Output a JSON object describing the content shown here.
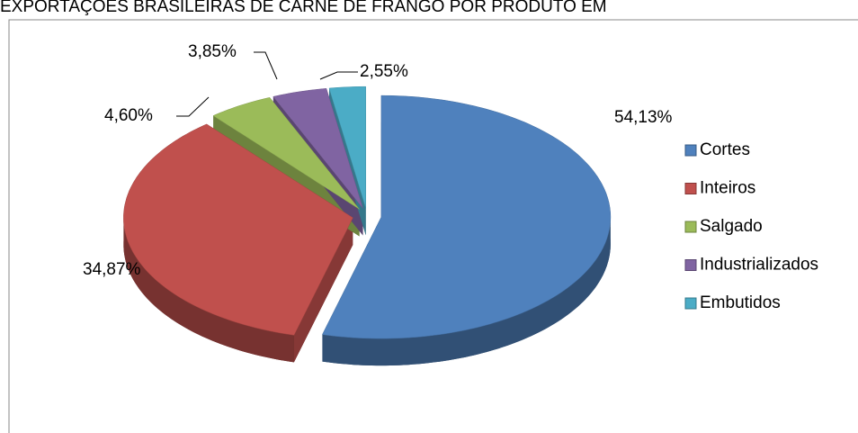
{
  "chart_data": {
    "type": "pie",
    "title": "EXPORTAÇÕES BRASILEIRAS DE CARNE DE FRANGO POR PRODUTO EM",
    "categories": [
      "Cortes",
      "Inteiros",
      "Salgado",
      "Industrializados",
      "Embutidos"
    ],
    "values": [
      54.13,
      34.87,
      4.6,
      3.85,
      2.55
    ],
    "value_labels": [
      "54,13%",
      "34,87%",
      "4,60%",
      "3,85%",
      "2,55%"
    ],
    "colors": [
      "#4f81bd",
      "#c0504d",
      "#9bbb59",
      "#8064a2",
      "#4bacc6"
    ],
    "legend": "right"
  }
}
